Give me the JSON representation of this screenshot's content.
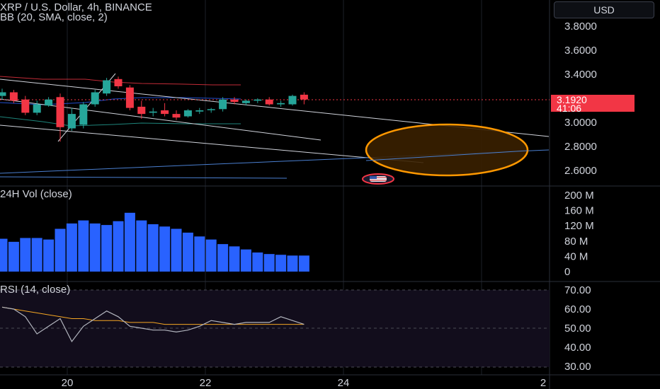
{
  "header": {
    "symbol_line": "XRP / U.S. Dollar, 4h, BINANCE",
    "indicator_line": "BB (20, SMA, close, 2)",
    "currency": "USD"
  },
  "last_price": {
    "value": "3.1920",
    "countdown": "41:06"
  },
  "colors": {
    "up": "#26a69a",
    "down": "#f23645",
    "volume": "#2962ff",
    "rsi_line": "#b2b5be",
    "rsi_ma": "#f5a623",
    "ellipse": "#ff9800",
    "trendline": "#d1d4dc",
    "blue_line": "#4a7fd0",
    "bb_band": "#2962ff"
  },
  "chart_data": [
    {
      "type": "candlestick",
      "title": "XRP / U.S. Dollar, 4h, BINANCE",
      "indicator": "BB (20, SMA, close, 2)",
      "ylim": [
        2.52,
        3.92
      ],
      "y_ticks": [
        "3.8000",
        "3.6000",
        "3.4000",
        "3.2000",
        "3.0000",
        "2.8000",
        "2.6000"
      ],
      "x_ticks": [
        "20",
        "22",
        "24",
        "2"
      ],
      "candles": [
        {
          "o": 3.22,
          "h": 3.28,
          "l": 3.19,
          "c": 3.25
        },
        {
          "o": 3.25,
          "h": 3.27,
          "l": 3.16,
          "c": 3.18
        },
        {
          "o": 3.19,
          "h": 3.22,
          "l": 3.06,
          "c": 3.08
        },
        {
          "o": 3.08,
          "h": 3.18,
          "l": 3.06,
          "c": 3.15
        },
        {
          "o": 3.14,
          "h": 3.21,
          "l": 3.13,
          "c": 3.19
        },
        {
          "o": 3.21,
          "h": 3.24,
          "l": 2.84,
          "c": 2.96
        },
        {
          "o": 2.95,
          "h": 3.12,
          "l": 2.93,
          "c": 3.07
        },
        {
          "o": 2.98,
          "h": 3.17,
          "l": 2.95,
          "c": 3.15
        },
        {
          "o": 3.15,
          "h": 3.27,
          "l": 3.13,
          "c": 3.25
        },
        {
          "o": 3.24,
          "h": 3.37,
          "l": 3.22,
          "c": 3.35
        },
        {
          "o": 3.36,
          "h": 3.38,
          "l": 3.28,
          "c": 3.3
        },
        {
          "o": 3.29,
          "h": 3.31,
          "l": 3.1,
          "c": 3.12
        },
        {
          "o": 3.13,
          "h": 3.18,
          "l": 3.03,
          "c": 3.07
        },
        {
          "o": 3.08,
          "h": 3.12,
          "l": 3.05,
          "c": 3.09
        },
        {
          "o": 3.1,
          "h": 3.16,
          "l": 3.05,
          "c": 3.07
        },
        {
          "o": 3.07,
          "h": 3.1,
          "l": 3.02,
          "c": 3.04
        },
        {
          "o": 3.05,
          "h": 3.11,
          "l": 3.04,
          "c": 3.1
        },
        {
          "o": 3.09,
          "h": 3.12,
          "l": 3.07,
          "c": 3.1
        },
        {
          "o": 3.11,
          "h": 3.12,
          "l": 3.08,
          "c": 3.11
        },
        {
          "o": 3.11,
          "h": 3.21,
          "l": 3.09,
          "c": 3.19
        },
        {
          "o": 3.19,
          "h": 3.21,
          "l": 3.15,
          "c": 3.17
        },
        {
          "o": 3.16,
          "h": 3.19,
          "l": 3.14,
          "c": 3.18
        },
        {
          "o": 3.18,
          "h": 3.2,
          "l": 3.16,
          "c": 3.19
        },
        {
          "o": 3.19,
          "h": 3.21,
          "l": 3.14,
          "c": 3.15
        },
        {
          "o": 3.15,
          "h": 3.18,
          "l": 3.13,
          "c": 3.16
        },
        {
          "o": 3.15,
          "h": 3.23,
          "l": 3.14,
          "c": 3.22
        },
        {
          "o": 3.23,
          "h": 3.25,
          "l": 3.15,
          "c": 3.19
        }
      ]
    },
    {
      "type": "bar",
      "title": "24H Vol (close)",
      "ylim": [
        0,
        200
      ],
      "y_ticks": [
        "200 M",
        "160 M",
        "120 M",
        "80 M",
        "40 M",
        "0"
      ],
      "values": [
        86,
        78,
        88,
        88,
        84,
        112,
        126,
        134,
        126,
        122,
        132,
        154,
        134,
        124,
        118,
        112,
        102,
        92,
        84,
        72,
        66,
        58,
        50,
        46,
        44,
        42,
        42
      ]
    },
    {
      "type": "line",
      "title": "RSI (14, close)",
      "ylim": [
        27,
        72
      ],
      "y_ticks": [
        "70.00",
        "60.00",
        "50.00",
        "40.00",
        "30.00"
      ],
      "series": [
        {
          "values": [
            61,
            60,
            56,
            47,
            51,
            55,
            43,
            51,
            55,
            59,
            56,
            51,
            50,
            49,
            49,
            48,
            49,
            51,
            54,
            53,
            52,
            53,
            53,
            53,
            56,
            54,
            52
          ]
        },
        {
          "values": [
            61,
            60,
            59,
            58,
            57,
            56,
            55,
            55,
            54,
            54,
            54,
            53,
            53,
            53,
            52,
            52,
            52,
            52,
            52,
            52,
            52,
            52,
            52,
            52,
            52,
            52,
            52
          ]
        }
      ]
    }
  ]
}
